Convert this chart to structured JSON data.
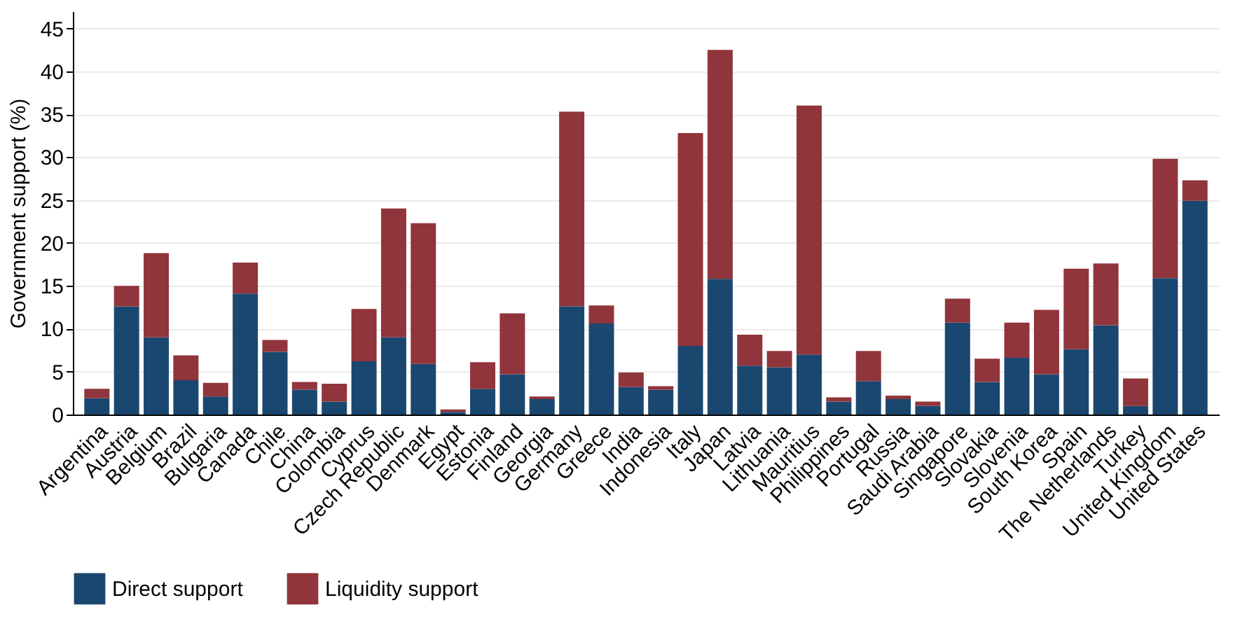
{
  "chart_data": {
    "type": "bar",
    "stacked": true,
    "ylabel": "Government support (%)",
    "categories": [
      "Argentina",
      "Austria",
      "Belgium",
      "Brazil",
      "Bulgaria",
      "Canada",
      "Chile",
      "China",
      "Colombia",
      "Cyprus",
      "Czech Republic",
      "Denmark",
      "Egypt",
      "Estonia",
      "Finland",
      "Georgia",
      "Germany",
      "Greece",
      "India",
      "Indonesia",
      "Italy",
      "Japan",
      "Latvia",
      "Lithuania",
      "Mauritius",
      "Philippines",
      "Portugal",
      "Russia",
      "Saudi Arabia",
      "Singapore",
      "Slovakia",
      "Slovenia",
      "South Korea",
      "Spain",
      "The Netherlands",
      "Turkey",
      "United Kingdom",
      "United States"
    ],
    "series": [
      {
        "name": "Direct support",
        "color": "#1a476f",
        "values": [
          1.9,
          12.6,
          9.0,
          4.0,
          2.1,
          14.1,
          7.3,
          2.9,
          1.5,
          6.2,
          9.0,
          5.9,
          0.3,
          3.0,
          4.7,
          1.8,
          12.6,
          10.6,
          3.2,
          2.9,
          8.0,
          15.8,
          5.7,
          5.5,
          7.0,
          1.5,
          3.9,
          1.8,
          1.0,
          10.7,
          3.8,
          6.6,
          4.7,
          7.6,
          10.4,
          1.0,
          15.9,
          24.9
        ]
      },
      {
        "name": "Liquidity support",
        "color": "#90353b",
        "values": [
          1.1,
          2.4,
          9.8,
          2.9,
          1.6,
          3.6,
          1.4,
          0.9,
          2.1,
          6.1,
          15.0,
          16.4,
          0.3,
          3.1,
          7.1,
          0.3,
          22.7,
          2.1,
          1.7,
          0.4,
          24.8,
          26.7,
          3.6,
          1.9,
          29.0,
          0.5,
          3.5,
          0.4,
          0.5,
          2.8,
          2.7,
          4.1,
          7.5,
          9.4,
          7.2,
          3.2,
          13.9,
          2.4
        ]
      }
    ],
    "ylim": [
      0,
      47
    ],
    "yticks": [
      0,
      5,
      10,
      15,
      20,
      25,
      30,
      35,
      40,
      45
    ],
    "grid": "y",
    "legend": "bottom"
  }
}
